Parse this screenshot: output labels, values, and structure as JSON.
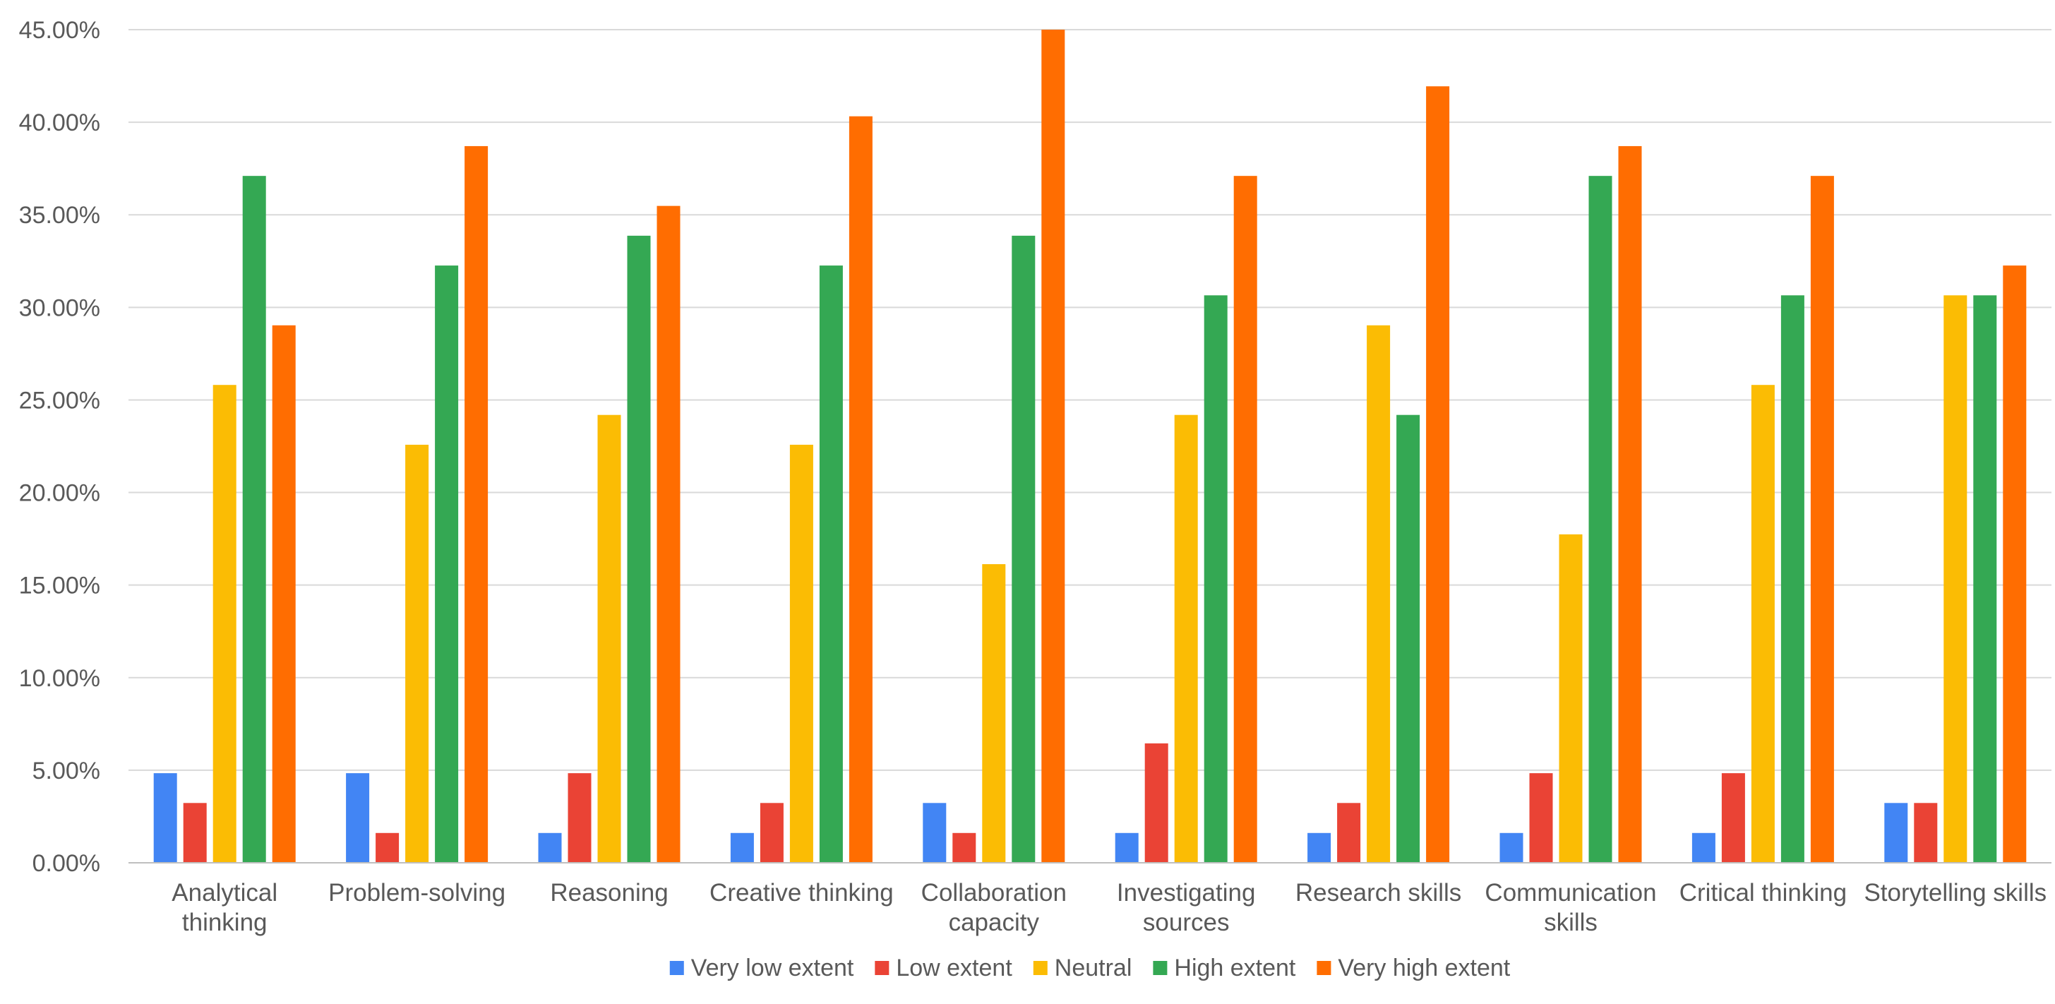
{
  "chart_data": {
    "type": "bar",
    "title": "",
    "xlabel": "",
    "ylabel": "",
    "ylim": [
      0,
      45
    ],
    "y_ticks": [
      "0.00%",
      "5.00%",
      "10.00%",
      "15.00%",
      "20.00%",
      "25.00%",
      "30.00%",
      "35.00%",
      "40.00%",
      "45.00%"
    ],
    "grid": true,
    "legend_position": "bottom",
    "categories": [
      [
        "Analytical",
        "thinking"
      ],
      [
        "Problem-solving"
      ],
      [
        "Reasoning"
      ],
      [
        "Creative thinking"
      ],
      [
        "Collaboration",
        "capacity"
      ],
      [
        "Investigating",
        "sources"
      ],
      [
        "Research skills"
      ],
      [
        "Communication",
        "skills"
      ],
      [
        "Critical thinking"
      ],
      [
        "Storytelling skills"
      ]
    ],
    "series": [
      {
        "name": "Very low extent",
        "color": "#4285f4",
        "values": [
          4.84,
          4.84,
          1.61,
          1.61,
          3.23,
          1.61,
          1.61,
          1.61,
          1.61,
          3.23
        ]
      },
      {
        "name": "Low extent",
        "color": "#ea4335",
        "values": [
          3.23,
          1.61,
          4.84,
          3.23,
          1.61,
          6.45,
          3.23,
          4.84,
          4.84,
          3.23
        ]
      },
      {
        "name": "Neutral",
        "color": "#fbbc04",
        "values": [
          25.81,
          22.58,
          24.19,
          22.58,
          16.13,
          24.19,
          29.03,
          17.74,
          25.81,
          30.65
        ]
      },
      {
        "name": "High extent",
        "color": "#34a853",
        "values": [
          37.1,
          32.26,
          33.87,
          32.26,
          33.87,
          30.65,
          24.19,
          37.1,
          30.65,
          30.65
        ]
      },
      {
        "name": "Very high extent",
        "color": "#ff6d01",
        "values": [
          29.03,
          38.71,
          35.48,
          40.32,
          45.16,
          37.1,
          41.94,
          38.71,
          37.1,
          32.26
        ]
      }
    ]
  }
}
